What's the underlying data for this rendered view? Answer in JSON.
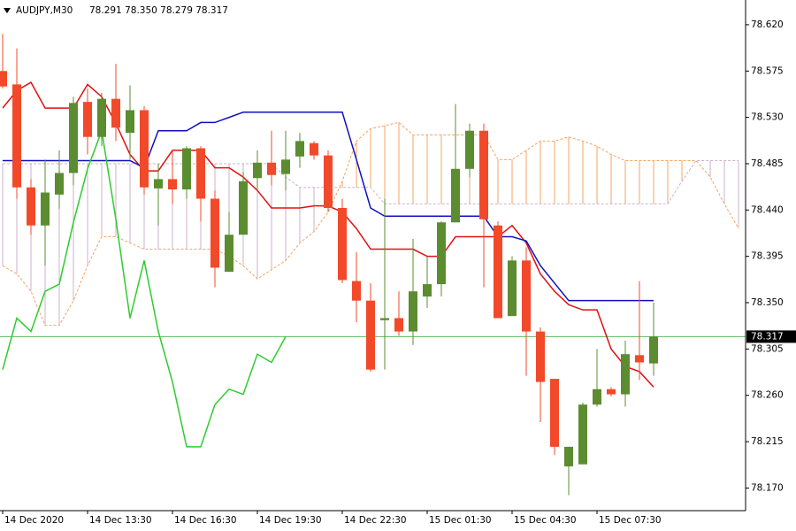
{
  "chart_data": {
    "type": "candlestick",
    "title": "AUDJPY,M30",
    "quote": "78.291 78.350 78.279 78.317",
    "categories": [
      "14 Dec 2020",
      null,
      null,
      null,
      null,
      null,
      "14 Dec 13:30",
      null,
      null,
      null,
      null,
      null,
      "14 Dec 16:30",
      null,
      null,
      null,
      null,
      null,
      "14 Dec 19:30",
      null,
      null,
      null,
      null,
      null,
      "14 Dec 22:30",
      null,
      null,
      null,
      null,
      null,
      "15 Dec 01:30",
      null,
      null,
      null,
      null,
      null,
      "15 Dec 04:30",
      null,
      null,
      null,
      null,
      null,
      "15 Dec 07:30",
      null,
      null,
      null,
      null,
      null,
      null,
      null,
      null,
      null,
      null
    ],
    "open": [
      78.575,
      78.562,
      78.462,
      78.425,
      78.455,
      78.476,
      78.545,
      78.511,
      78.548,
      78.515,
      78.537,
      78.461,
      78.47,
      78.46,
      78.5,
      78.451,
      78.38,
      78.416,
      78.471,
      78.486,
      78.475,
      78.492,
      78.505,
      78.493,
      78.442,
      78.371,
      78.352,
      78.333,
      78.335,
      78.322,
      78.356,
      78.368,
      78.428,
      78.48,
      78.517,
      78.425,
      78.337,
      78.391,
      78.322,
      78.276,
      78.191,
      78.193,
      78.251,
      78.266,
      78.261,
      78.299,
      78.291,
      null,
      null,
      null,
      null,
      null,
      null
    ],
    "high": [
      78.611,
      78.597,
      78.47,
      78.489,
      78.498,
      78.55,
      78.558,
      78.554,
      78.582,
      78.561,
      78.541,
      78.485,
      78.498,
      78.502,
      78.502,
      78.459,
      78.438,
      78.477,
      78.498,
      78.517,
      78.517,
      78.515,
      78.507,
      78.498,
      78.451,
      78.399,
      78.369,
      78.451,
      78.361,
      78.412,
      78.395,
      78.429,
      78.543,
      78.524,
      78.524,
      78.429,
      78.395,
      78.404,
      78.326,
      78.276,
      78.21,
      78.253,
      78.305,
      78.268,
      78.313,
      78.371,
      78.35,
      null,
      null,
      null,
      null,
      null,
      null
    ],
    "low": [
      78.558,
      78.451,
      78.416,
      78.386,
      78.441,
      78.464,
      78.494,
      78.502,
      78.507,
      78.489,
      78.455,
      78.425,
      78.446,
      78.451,
      78.429,
      78.365,
      78.38,
      78.416,
      78.459,
      78.464,
      78.459,
      78.481,
      78.489,
      78.438,
      78.369,
      78.331,
      78.283,
      78.285,
      78.318,
      78.309,
      78.345,
      78.356,
      78.428,
      78.472,
      78.365,
      78.335,
      78.337,
      78.279,
      78.234,
      78.202,
      78.163,
      78.193,
      78.249,
      78.259,
      78.249,
      78.275,
      78.279,
      null,
      null,
      null,
      null,
      null,
      null
    ],
    "close": [
      78.56,
      78.462,
      78.425,
      78.457,
      78.476,
      78.544,
      78.511,
      78.548,
      78.52,
      78.537,
      78.462,
      78.47,
      78.46,
      78.5,
      78.451,
      78.384,
      78.416,
      78.468,
      78.486,
      78.474,
      78.489,
      78.507,
      78.493,
      78.442,
      78.372,
      78.352,
      78.285,
      78.335,
      78.322,
      78.361,
      78.368,
      78.428,
      78.48,
      78.517,
      78.431,
      78.335,
      78.391,
      78.322,
      78.273,
      78.21,
      78.21,
      78.251,
      78.266,
      78.261,
      78.3,
      78.292,
      78.317,
      null,
      null,
      null,
      null,
      null,
      null
    ],
    "up_color": "#5b8c2f",
    "down_color": "#f2492a",
    "lines": [
      {
        "color": "#e01010",
        "values": [
          78.539,
          78.556,
          78.564,
          78.539,
          78.539,
          78.539,
          78.562,
          78.55,
          78.524,
          78.494,
          78.478,
          78.478,
          78.498,
          78.498,
          78.498,
          78.481,
          78.481,
          78.472,
          78.459,
          78.442,
          78.442,
          78.442,
          78.444,
          78.444,
          78.438,
          78.422,
          78.402,
          78.402,
          78.402,
          78.402,
          78.395,
          78.395,
          78.414,
          78.414,
          78.414,
          78.414,
          78.425,
          78.408,
          78.378,
          78.361,
          78.348,
          78.343,
          78.343,
          78.305,
          78.288,
          78.283,
          78.268,
          null,
          null,
          null,
          null,
          null,
          null
        ]
      },
      {
        "color": "#1010c0",
        "values": [
          78.488,
          78.488,
          78.488,
          78.488,
          78.488,
          78.488,
          78.488,
          78.488,
          78.488,
          78.488,
          78.481,
          78.517,
          78.517,
          78.517,
          78.525,
          78.525,
          78.53,
          78.535,
          78.535,
          78.535,
          78.535,
          78.535,
          78.535,
          78.535,
          78.535,
          78.489,
          78.442,
          78.434,
          78.434,
          78.434,
          78.434,
          78.434,
          78.434,
          78.434,
          78.434,
          78.414,
          78.414,
          78.41,
          78.386,
          78.369,
          78.352,
          78.352,
          78.352,
          78.352,
          78.352,
          78.352,
          78.352,
          null,
          null,
          null,
          null,
          null,
          null
        ]
      },
      {
        "color": "#2ecc2e",
        "values": [
          78.285,
          78.335,
          78.322,
          78.361,
          78.368,
          78.428,
          78.48,
          78.517,
          78.431,
          78.335,
          78.391,
          78.322,
          78.273,
          78.21,
          78.21,
          78.251,
          78.266,
          78.261,
          78.3,
          78.292,
          78.317,
          null,
          null,
          null,
          null,
          null,
          null,
          null,
          null,
          null,
          null,
          null,
          null,
          null,
          null,
          null,
          null,
          null,
          null,
          null,
          null,
          null,
          null,
          null,
          null,
          null,
          null,
          null,
          null,
          null,
          null,
          null,
          null
        ]
      }
    ],
    "cloud": {
      "up_color": "#f4a460",
      "down_color": "#cdb0cd",
      "span_a": [
        78.386,
        78.378,
        78.361,
        78.328,
        78.328,
        78.352,
        78.386,
        78.414,
        78.414,
        78.408,
        78.402,
        78.402,
        78.402,
        78.402,
        78.402,
        78.402,
        78.395,
        78.386,
        78.373,
        78.382,
        78.391,
        78.408,
        78.419,
        78.438,
        78.468,
        78.507,
        78.519,
        78.522,
        78.525,
        78.513,
        78.513,
        78.513,
        78.513,
        78.513,
        78.513,
        78.489,
        78.489,
        78.498,
        78.507,
        78.507,
        78.511,
        78.507,
        78.502,
        78.494,
        78.488,
        78.488,
        78.488,
        78.488,
        78.488,
        78.488,
        78.472,
        78.446,
        78.422
      ],
      "span_b": [
        78.485,
        78.485,
        78.485,
        78.485,
        78.485,
        78.485,
        78.485,
        78.485,
        78.485,
        78.485,
        78.485,
        78.485,
        78.485,
        78.485,
        78.485,
        78.485,
        78.485,
        78.485,
        78.485,
        78.485,
        78.472,
        78.462,
        78.462,
        78.462,
        78.462,
        78.462,
        78.462,
        78.446,
        78.446,
        78.446,
        78.446,
        78.446,
        78.446,
        78.446,
        78.446,
        78.446,
        78.446,
        78.446,
        78.446,
        78.446,
        78.446,
        78.446,
        78.446,
        78.446,
        78.446,
        78.446,
        78.446,
        78.446,
        78.468,
        78.488,
        78.488,
        78.488,
        78.488
      ]
    },
    "price_line_color": "#5cb85c",
    "ylim": [
      78.148,
      78.644
    ],
    "yticks": [
      {
        "value": 78.62,
        "label": "78.620"
      },
      78.575,
      {
        "value": 78.53,
        "label": "78.530"
      },
      78.485,
      {
        "value": 78.44,
        "label": "78.440"
      },
      78.395,
      {
        "value": 78.35,
        "label": "78.350"
      },
      78.305,
      {
        "value": 78.26,
        "label": "78.260"
      },
      78.215,
      {
        "value": 78.17,
        "label": "78.170"
      }
    ],
    "grid": false
  }
}
